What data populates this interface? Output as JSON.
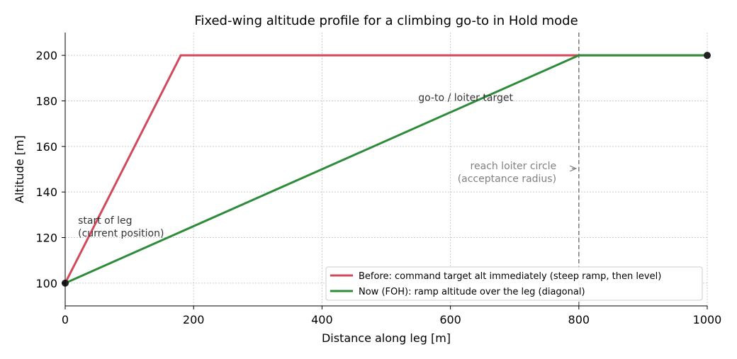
{
  "chart_data": {
    "type": "line",
    "title": "Fixed-wing altitude profile for a climbing go-to in Hold mode",
    "xlabel": "Distance along leg [m]",
    "ylabel": "Altitude [m]",
    "xlim": [
      0,
      1000
    ],
    "ylim": [
      90,
      210
    ],
    "xticks": [
      0,
      200,
      400,
      600,
      800,
      1000
    ],
    "yticks": [
      100,
      120,
      140,
      160,
      180,
      200
    ],
    "grid": true,
    "legend_position": "lower-right",
    "series": [
      {
        "name": "Before: command target alt immediately (steep ramp, then level)",
        "color": "#d1495b",
        "x": [
          0,
          180,
          1000
        ],
        "y": [
          100,
          200,
          200
        ]
      },
      {
        "name": "Now (FOH): ramp altitude over the leg (diagonal)",
        "color": "#2e8b3a",
        "x": [
          0,
          800,
          1000
        ],
        "y": [
          100,
          200,
          200
        ]
      }
    ],
    "endpoints": [
      {
        "x": 0,
        "y": 100
      },
      {
        "x": 1000,
        "y": 200
      }
    ],
    "vline": {
      "x": 800,
      "color": "#808080",
      "style": "dashed"
    },
    "annotations": [
      {
        "id": "start",
        "lines": [
          "start of leg",
          "(current position)"
        ],
        "x": 20,
        "y": 126,
        "color": "#333333",
        "anchor": "start"
      },
      {
        "id": "target",
        "lines": [
          "go-to / loiter target"
        ],
        "x": 550,
        "y": 180,
        "color": "#333333",
        "anchor": "start"
      },
      {
        "id": "loiter",
        "lines": [
          "reach loiter circle",
          "(acceptance radius)"
        ],
        "x": 765,
        "y": 150,
        "color": "#808080",
        "anchor": "end",
        "arrow_to": {
          "x": 800,
          "y": 150
        }
      }
    ]
  }
}
